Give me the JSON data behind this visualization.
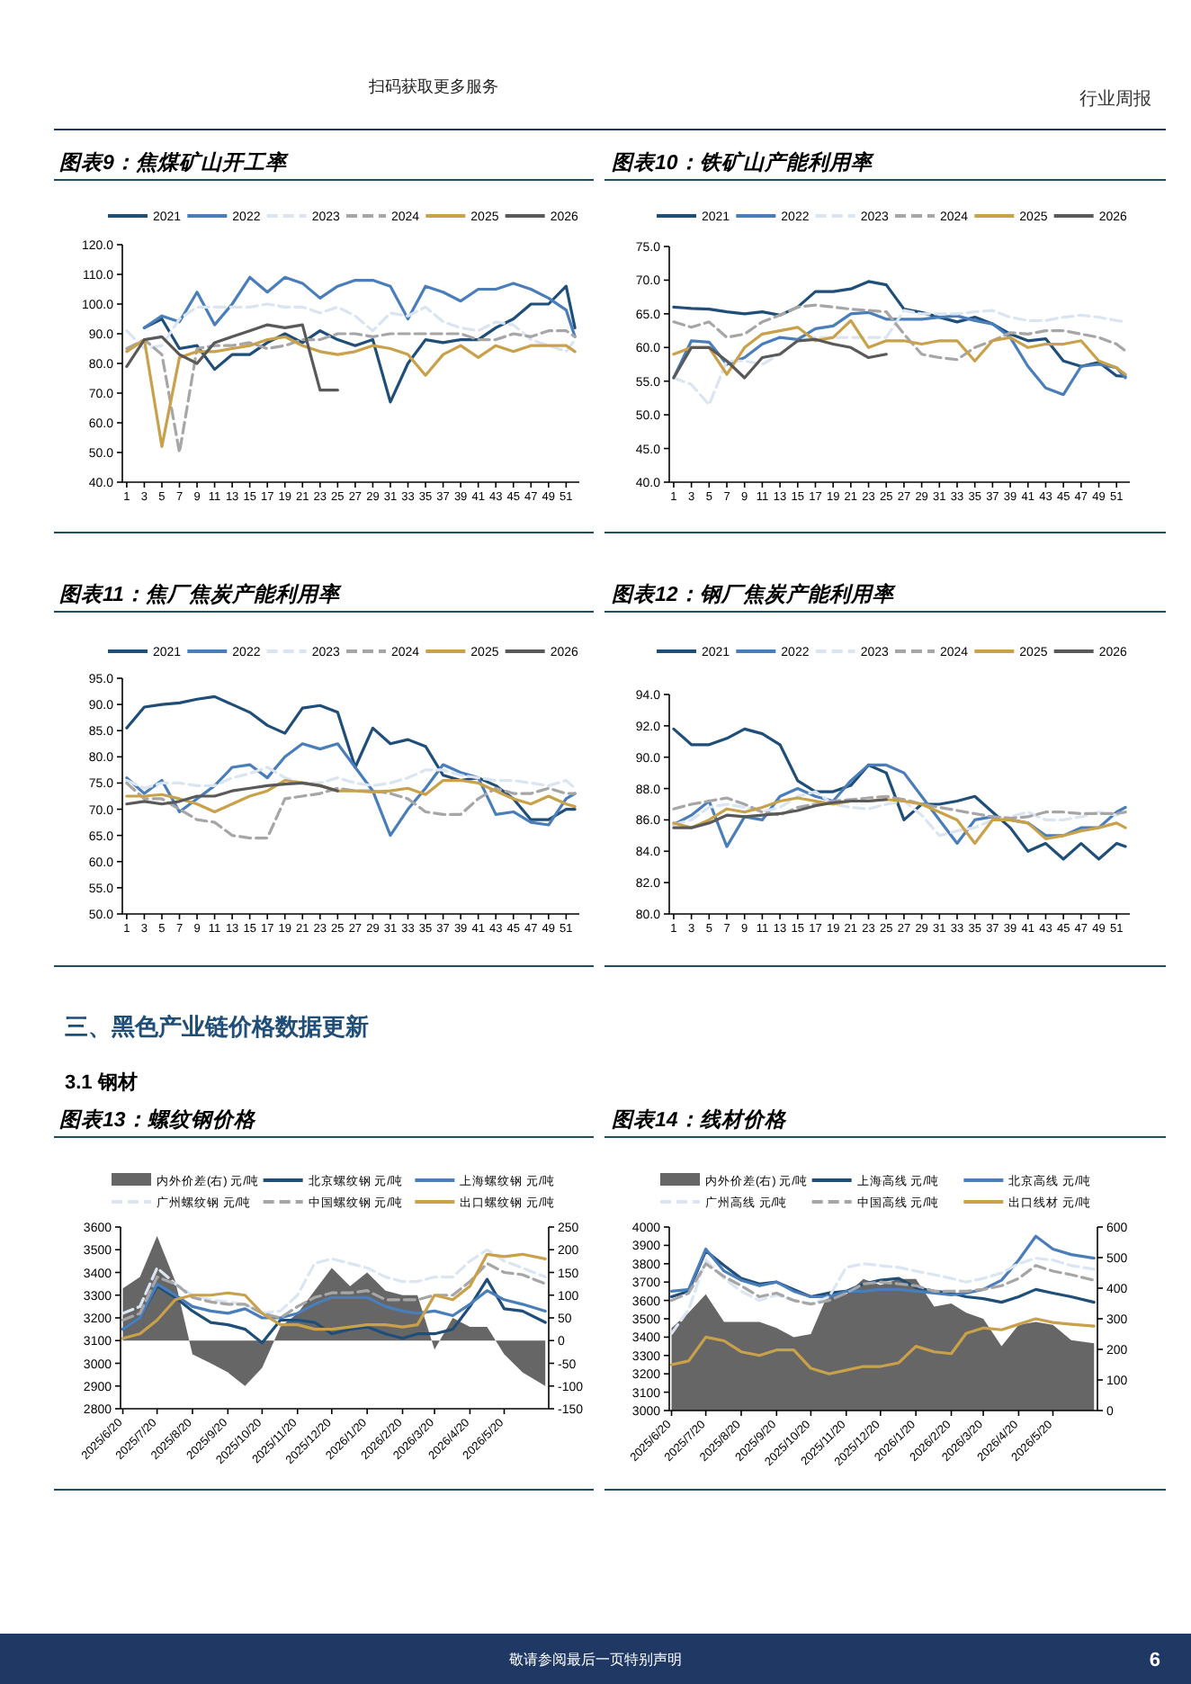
{
  "chart_data": [
    {
      "type": "line",
      "title": "图表9：焦煤矿山开工率",
      "legend": "top",
      "annotations": [
        "行业周报",
        "扫码获取更多服务",
        "敬请参阅最后一页特别声明",
        "6"
      ],
      "x": [
        1,
        3,
        5,
        7,
        9,
        11,
        13,
        15,
        17,
        19,
        21,
        23,
        25,
        27,
        29,
        31,
        33,
        35,
        37,
        39,
        41,
        43,
        45,
        47,
        49,
        51,
        52
      ],
      "xlim": [
        0.5,
        52.5
      ],
      "xticks": [
        1,
        3,
        5,
        7,
        9,
        11,
        13,
        15,
        17,
        19,
        21,
        23,
        25,
        27,
        29,
        31,
        33,
        35,
        37,
        39,
        41,
        43,
        45,
        47,
        49,
        51
      ],
      "ylim": [
        40,
        120
      ],
      "yticks": [
        {
          "value": 40,
          "label": "40.0"
        },
        {
          "value": 50,
          "label": "50.0"
        },
        {
          "value": 60,
          "label": "60.0"
        },
        {
          "value": 70,
          "label": "70.0"
        },
        {
          "value": 80,
          "label": "80.0"
        },
        {
          "value": 90,
          "label": "90.0"
        },
        {
          "value": 100,
          "label": "100.0"
        },
        {
          "value": 110,
          "label": "110.0"
        },
        {
          "value": 120,
          "label": "120.0"
        }
      ],
      "series": [
        {
          "name": "2021",
          "color": "#1f4e79",
          "line_style": "solid",
          "values": [
            null,
            92,
            95,
            85,
            86,
            78,
            83,
            83,
            87,
            90,
            87,
            91,
            88,
            86,
            88,
            67,
            80,
            88,
            87,
            88,
            88,
            92,
            95,
            100,
            100,
            106,
            92
          ]
        },
        {
          "name": "2022",
          "color": "#4a7ebb",
          "line_style": "solid",
          "values": [
            null,
            92,
            96,
            94,
            104,
            93,
            100,
            109,
            104,
            109,
            107,
            102,
            106,
            108,
            108,
            106,
            95,
            106,
            104,
            101,
            105,
            105,
            107,
            105,
            102,
            98,
            89
          ]
        },
        {
          "name": "2023",
          "color": "#dbe5f1",
          "line_style": "dashed",
          "values": [
            91,
            85,
            86,
            95,
            99,
            99,
            99,
            99,
            100,
            99,
            99,
            97,
            99,
            96,
            91,
            97,
            96,
            99,
            94,
            92,
            91,
            94,
            93,
            88,
            86,
            84,
            88
          ]
        },
        {
          "name": "2024",
          "color": "#a6a6a6",
          "line_style": "dashed",
          "values": [
            85,
            88,
            83,
            50,
            85,
            86,
            86,
            87,
            85,
            86,
            88,
            88,
            90,
            90,
            89,
            90,
            90,
            90,
            90,
            90,
            88,
            88,
            90,
            89,
            91,
            91,
            89
          ]
        },
        {
          "name": "2025",
          "color": "#c9a14a",
          "line_style": "solid",
          "values": [
            84,
            88,
            52,
            82,
            84,
            84,
            85,
            86,
            88,
            89,
            86,
            84,
            83,
            84,
            86,
            85,
            83,
            76,
            83,
            86,
            82,
            86,
            84,
            86,
            86,
            86,
            84
          ]
        },
        {
          "name": "2026",
          "color": "#595959",
          "line_style": "solid",
          "values": [
            79,
            88,
            89,
            83,
            80,
            87,
            89,
            91,
            93,
            92,
            93,
            71,
            71,
            null,
            null,
            null,
            null,
            null,
            null,
            null,
            null,
            null,
            null,
            null,
            null,
            null,
            null
          ]
        }
      ]
    },
    {
      "type": "line",
      "title": "图表10：铁矿山产能利用率",
      "legend": "top",
      "x": [
        1,
        3,
        5,
        7,
        9,
        11,
        13,
        15,
        17,
        19,
        21,
        23,
        25,
        27,
        29,
        31,
        33,
        35,
        37,
        39,
        41,
        43,
        45,
        47,
        49,
        51,
        52
      ],
      "xlim": [
        0.5,
        52.5
      ],
      "xticks": [
        1,
        3,
        5,
        7,
        9,
        11,
        13,
        15,
        17,
        19,
        21,
        23,
        25,
        27,
        29,
        31,
        33,
        35,
        37,
        39,
        41,
        43,
        45,
        47,
        49,
        51
      ],
      "ylim": [
        40,
        75
      ],
      "yticks": [
        {
          "value": 40,
          "label": "40.0"
        },
        {
          "value": 45,
          "label": "45.0"
        },
        {
          "value": 50,
          "label": "50.0"
        },
        {
          "value": 55,
          "label": "55.0"
        },
        {
          "value": 60,
          "label": "60.0"
        },
        {
          "value": 65,
          "label": "65.0"
        },
        {
          "value": 70,
          "label": "70.0"
        },
        {
          "value": 75,
          "label": "75.0"
        }
      ],
      "series": [
        {
          "name": "2021",
          "color": "#1f4e79",
          "line_style": "solid",
          "values": [
            66,
            65.8,
            65.7,
            65.3,
            65,
            65.3,
            64.8,
            66,
            68.3,
            68.3,
            68.7,
            69.8,
            69.3,
            65.7,
            65.2,
            64.5,
            63.8,
            64.5,
            63.5,
            62,
            61,
            61.3,
            58,
            57.2,
            57.8,
            55.8,
            55.7
          ]
        },
        {
          "name": "2022",
          "color": "#4a7ebb",
          "line_style": "solid",
          "values": [
            55.5,
            61,
            60.8,
            57.5,
            58.5,
            60.5,
            61.5,
            61.2,
            62.8,
            63.2,
            65,
            65.2,
            64.2,
            64.2,
            64.2,
            64.5,
            64.7,
            64,
            63.5,
            61.5,
            57.2,
            54,
            53,
            57.2,
            57.5,
            57,
            55.5
          ]
        },
        {
          "name": "2023",
          "color": "#dbe5f1",
          "line_style": "dashed",
          "values": [
            55.5,
            54.5,
            51.5,
            58,
            58,
            57.5,
            59,
            61,
            61.5,
            61.5,
            61.5,
            61.5,
            61.5,
            65.5,
            65,
            65,
            65,
            65.3,
            65.5,
            64.5,
            64,
            64,
            64.5,
            64.8,
            64.5,
            64,
            63.8
          ]
        },
        {
          "name": "2024",
          "color": "#a6a6a6",
          "line_style": "dashed",
          "values": [
            63.8,
            63,
            63.8,
            61.5,
            62,
            63.8,
            64.8,
            66,
            66.3,
            66,
            65.7,
            65.5,
            65.3,
            62,
            59,
            58.5,
            58.2,
            60,
            61,
            62.2,
            62,
            62.5,
            62.5,
            62,
            61.5,
            60.5,
            59.5
          ]
        },
        {
          "name": "2025",
          "color": "#c9a14a",
          "line_style": "solid",
          "values": [
            59,
            60,
            60,
            56,
            60,
            62,
            62.5,
            63,
            61,
            61.5,
            64,
            60,
            61,
            61,
            60.5,
            61,
            61,
            58,
            61,
            61.5,
            60,
            60.5,
            60.5,
            61,
            58,
            57,
            56
          ]
        },
        {
          "name": "2026",
          "color": "#595959",
          "line_style": "solid",
          "values": [
            55.5,
            60,
            60,
            58,
            55.5,
            58.5,
            59,
            61,
            61.2,
            60.5,
            60,
            58.5,
            59,
            null,
            null,
            null,
            null,
            null,
            null,
            null,
            null,
            null,
            null,
            null,
            null,
            null,
            null
          ]
        }
      ]
    },
    {
      "type": "line",
      "title": "图表11：焦厂焦炭产能利用率",
      "legend": "top",
      "x": [
        1,
        3,
        5,
        7,
        9,
        11,
        13,
        15,
        17,
        19,
        21,
        23,
        25,
        27,
        29,
        31,
        33,
        35,
        37,
        39,
        41,
        43,
        45,
        47,
        49,
        51,
        52
      ],
      "xlim": [
        0.5,
        52.5
      ],
      "xticks": [
        1,
        3,
        5,
        7,
        9,
        11,
        13,
        15,
        17,
        19,
        21,
        23,
        25,
        27,
        29,
        31,
        33,
        35,
        37,
        39,
        41,
        43,
        45,
        47,
        49,
        51
      ],
      "ylim": [
        50,
        95
      ],
      "yticks": [
        {
          "value": 50,
          "label": "50.0"
        },
        {
          "value": 55,
          "label": "55.0"
        },
        {
          "value": 60,
          "label": "60.0"
        },
        {
          "value": 65,
          "label": "65.0"
        },
        {
          "value": 70,
          "label": "70.0"
        },
        {
          "value": 75,
          "label": "75.0"
        },
        {
          "value": 80,
          "label": "80.0"
        },
        {
          "value": 85,
          "label": "85.0"
        },
        {
          "value": 90,
          "label": "90.0"
        },
        {
          "value": 95,
          "label": "95.0"
        }
      ],
      "series": [
        {
          "name": "2021",
          "color": "#1f4e79",
          "line_style": "solid",
          "values": [
            85.5,
            89.5,
            90,
            90.3,
            91,
            91.5,
            90,
            88.5,
            86,
            84.5,
            89.3,
            89.8,
            88.5,
            78,
            85.5,
            82.5,
            83.3,
            82,
            76.5,
            75.5,
            76,
            74.5,
            72,
            68,
            68,
            70,
            70
          ]
        },
        {
          "name": "2022",
          "color": "#4a7ebb",
          "line_style": "solid",
          "values": [
            76,
            73,
            75.5,
            69.5,
            72,
            74.5,
            78,
            78.5,
            76,
            80,
            82.5,
            81.5,
            82.5,
            78,
            73.5,
            65,
            70,
            74,
            78.5,
            77,
            76,
            69,
            69.5,
            67.5,
            67,
            72,
            73
          ]
        },
        {
          "name": "2023",
          "color": "#dbe5f1",
          "line_style": "dashed",
          "values": [
            75.5,
            74,
            75,
            75,
            74.5,
            74.5,
            76,
            76.8,
            78,
            76,
            75,
            75,
            76,
            75,
            74.5,
            75,
            76,
            77.5,
            77.5,
            76.5,
            76,
            75.5,
            75.5,
            75,
            74.5,
            75.5,
            74
          ]
        },
        {
          "name": "2024",
          "color": "#a6a6a6",
          "line_style": "dashed",
          "values": [
            75,
            72,
            72,
            70,
            68,
            67.5,
            65,
            64.5,
            64.5,
            72,
            72.5,
            73,
            74,
            73.5,
            73.5,
            73,
            72,
            69.5,
            69,
            69,
            72,
            74,
            73,
            73,
            74,
            73,
            73
          ]
        },
        {
          "name": "2025",
          "color": "#c9a14a",
          "line_style": "solid",
          "values": [
            72.5,
            72.5,
            72.8,
            72,
            71,
            69.5,
            71,
            72.5,
            73.5,
            75.5,
            75,
            74.5,
            73.5,
            73.5,
            73.3,
            73.5,
            74,
            72.8,
            75.5,
            75.5,
            75,
            73.5,
            72,
            71,
            72.5,
            71,
            70.5
          ]
        },
        {
          "name": "2026",
          "color": "#595959",
          "line_style": "solid",
          "values": [
            71,
            71.5,
            71,
            71.5,
            72.5,
            72.5,
            73.5,
            74,
            74.5,
            74.8,
            75,
            74.5,
            73.5,
            null,
            null,
            null,
            null,
            null,
            null,
            null,
            null,
            null,
            null,
            null,
            null,
            null,
            null
          ]
        }
      ]
    },
    {
      "type": "line",
      "title": "图表12：钢厂焦炭产能利用率",
      "legend": "top",
      "x": [
        1,
        3,
        5,
        7,
        9,
        11,
        13,
        15,
        17,
        19,
        21,
        23,
        25,
        27,
        29,
        31,
        33,
        35,
        37,
        39,
        41,
        43,
        45,
        47,
        49,
        51,
        52
      ],
      "xlim": [
        0.5,
        52.5
      ],
      "xticks": [
        1,
        3,
        5,
        7,
        9,
        11,
        13,
        15,
        17,
        19,
        21,
        23,
        25,
        27,
        29,
        31,
        33,
        35,
        37,
        39,
        41,
        43,
        45,
        47,
        49,
        51
      ],
      "ylim": [
        80,
        94
      ],
      "yticks": [
        {
          "value": 80,
          "label": "80.0"
        },
        {
          "value": 82,
          "label": "82.0"
        },
        {
          "value": 84,
          "label": "84.0"
        },
        {
          "value": 86,
          "label": "86.0"
        },
        {
          "value": 88,
          "label": "88.0"
        },
        {
          "value": 90,
          "label": "90.0"
        },
        {
          "value": 92,
          "label": "92.0"
        },
        {
          "value": 94,
          "label": "94.0"
        }
      ],
      "series": [
        {
          "name": "2021",
          "color": "#1f4e79",
          "line_style": "solid",
          "values": [
            91.8,
            90.8,
            90.8,
            91.2,
            91.8,
            91.5,
            90.8,
            88.5,
            87.8,
            87.8,
            88.2,
            89.5,
            89,
            86,
            87,
            87,
            87.2,
            87.5,
            86.5,
            85.5,
            84,
            84.5,
            83.5,
            84.5,
            83.5,
            84.5,
            84.3
          ]
        },
        {
          "name": "2022",
          "color": "#4a7ebb",
          "line_style": "solid",
          "values": [
            85.7,
            86.3,
            87.2,
            84.3,
            86.2,
            86,
            87.5,
            88,
            87.5,
            87.2,
            88.5,
            89.5,
            89.5,
            89,
            87.5,
            86,
            84.5,
            86,
            86.2,
            86,
            85.8,
            85,
            85,
            85.5,
            85.5,
            86.5,
            86.8
          ]
        },
        {
          "name": "2023",
          "color": "#dbe5f1",
          "line_style": "dashed",
          "values": [
            85.7,
            86,
            86.8,
            87,
            86.8,
            86.5,
            86.8,
            87.5,
            87.8,
            87,
            86.8,
            86.7,
            87,
            87.2,
            86.3,
            85,
            85.3,
            85.5,
            86,
            86.2,
            86.5,
            86,
            86,
            86.2,
            86.5,
            86.3,
            86.5
          ]
        },
        {
          "name": "2024",
          "color": "#a6a6a6",
          "line_style": "dashed",
          "values": [
            86.7,
            87,
            87.2,
            87.4,
            87,
            86.5,
            86.3,
            86.8,
            87,
            87.2,
            87.3,
            87.4,
            87.5,
            87.3,
            87,
            86.8,
            86.6,
            86.4,
            86.2,
            86.1,
            86.2,
            86.5,
            86.5,
            86.4,
            86.4,
            86.4,
            86.5
          ]
        },
        {
          "name": "2025",
          "color": "#c9a14a",
          "line_style": "solid",
          "values": [
            85.8,
            85.5,
            86,
            86.7,
            86.5,
            86.8,
            87.2,
            87.4,
            87.2,
            87,
            87.2,
            87.2,
            87.3,
            87.2,
            87,
            86.5,
            86,
            84.5,
            86,
            86,
            85.8,
            84.8,
            85,
            85.3,
            85.5,
            85.8,
            85.5
          ]
        },
        {
          "name": "2026",
          "color": "#595959",
          "line_style": "solid",
          "values": [
            85.5,
            85.5,
            85.8,
            86.3,
            86.2,
            86.3,
            86.4,
            86.6,
            86.9,
            87.1,
            87.2,
            87.2,
            87.3,
            null,
            null,
            null,
            null,
            null,
            null,
            null,
            null,
            null,
            null,
            null,
            null,
            null,
            null
          ]
        }
      ]
    },
    {
      "type": "line",
      "title": "图表13：螺纹钢价格",
      "legend": "top",
      "annotations": [
        "三、黑色产业链价格数据更新",
        "3.1 钢材"
      ],
      "x": [
        "2025-06-20",
        "2025-07-05",
        "2025-07-20",
        "2025-08-05",
        "2025-08-20",
        "2025-09-05",
        "2025-09-20",
        "2025-10-05",
        "2025-10-20",
        "2025-11-05",
        "2025-11-20",
        "2025-12-05",
        "2025-12-20",
        "2026-01-05",
        "2026-01-20",
        "2026-02-05",
        "2026-02-20",
        "2026-03-05",
        "2026-03-20",
        "2026-04-05",
        "2026-04-20",
        "2026-05-05",
        "2026-05-20",
        "2026-06-05",
        "2026-06-25"
      ],
      "xlim": [
        "2025-06-18",
        "2026-06-28"
      ],
      "xticks": [
        {
          "value": "2025-06-20",
          "label": "2025/6/20"
        },
        {
          "value": "2025-07-20",
          "label": "2025/7/20"
        },
        {
          "value": "2025-08-20",
          "label": "2025/8/20"
        },
        {
          "value": "2025-09-20",
          "label": "2025/9/20"
        },
        {
          "value": "2025-10-20",
          "label": "2025/10/20"
        },
        {
          "value": "2025-11-20",
          "label": "2025/11/20"
        },
        {
          "value": "2025-12-20",
          "label": "2025/12/20"
        },
        {
          "value": "2026-01-20",
          "label": "2026/1/20"
        },
        {
          "value": "2026-02-20",
          "label": "2026/2/20"
        },
        {
          "value": "2026-03-20",
          "label": "2026/3/20"
        },
        {
          "value": "2026-04-20",
          "label": "2026/4/20"
        },
        {
          "value": "2026-05-20",
          "label": "2026/5/20"
        }
      ],
      "ylim": [
        2800,
        3600
      ],
      "yticks": [
        2800,
        2900,
        3000,
        3100,
        3200,
        3300,
        3400,
        3500,
        3600
      ],
      "y2lim": [
        -150,
        250
      ],
      "y2ticks": [
        -150,
        -100,
        -50,
        0,
        50,
        100,
        150,
        200,
        250
      ],
      "series": [
        {
          "name": "内外价差(右) 元/吨",
          "type": "area",
          "axis": "y2",
          "color": "#666666",
          "values": [
            115,
            140,
            230,
            130,
            -30,
            -50,
            -70,
            -100,
            -60,
            30,
            60,
            110,
            160,
            120,
            150,
            110,
            100,
            100,
            -20,
            50,
            30,
            30,
            -30,
            -70,
            -100
          ]
        },
        {
          "name": "北京螺纹钢 元/吨",
          "color": "#1f4e79",
          "line_style": "solid",
          "values": [
            3150,
            3200,
            3340,
            3290,
            3230,
            3180,
            3170,
            3150,
            3090,
            3190,
            3190,
            3180,
            3130,
            3150,
            3160,
            3130,
            3110,
            3130,
            3130,
            3150,
            3250,
            3370,
            3240,
            3230,
            3180
          ]
        },
        {
          "name": "上海螺纹钢 元/吨",
          "color": "#4a7ebb",
          "line_style": "solid",
          "values": [
            3150,
            3200,
            3350,
            3300,
            3250,
            3230,
            3220,
            3240,
            3200,
            3200,
            3220,
            3260,
            3290,
            3290,
            3290,
            3250,
            3230,
            3220,
            3230,
            3210,
            3260,
            3320,
            3280,
            3260,
            3230
          ]
        },
        {
          "name": "广州螺纹钢 元/吨",
          "color": "#dce6f2",
          "line_style": "dashed",
          "values": [
            3220,
            3250,
            3420,
            3350,
            3300,
            3280,
            3270,
            3260,
            3220,
            3230,
            3300,
            3440,
            3460,
            3440,
            3420,
            3380,
            3360,
            3360,
            3380,
            3380,
            3450,
            3500,
            3450,
            3420,
            3380
          ]
        },
        {
          "name": "中国螺纹钢 元/吨",
          "color": "#a6a6a6",
          "line_style": "dashed",
          "values": [
            3190,
            3220,
            3380,
            3350,
            3290,
            3270,
            3260,
            3260,
            3220,
            3200,
            3250,
            3290,
            3310,
            3310,
            3320,
            3280,
            3280,
            3280,
            3300,
            3300,
            3360,
            3440,
            3400,
            3390,
            3350
          ]
        },
        {
          "name": "出口螺纹钢 元/吨",
          "color": "#c9a14a",
          "line_style": "solid",
          "values": [
            3110,
            3130,
            3190,
            3280,
            3300,
            3300,
            3310,
            3300,
            3220,
            3170,
            3170,
            3150,
            3150,
            3160,
            3170,
            3170,
            3160,
            3170,
            3300,
            3280,
            3340,
            3480,
            3470,
            3480,
            3460
          ]
        }
      ]
    },
    {
      "type": "line",
      "title": "图表14：线材价格",
      "legend": "top",
      "x": [
        "2025-06-20",
        "2025-07-05",
        "2025-07-20",
        "2025-08-05",
        "2025-08-20",
        "2025-09-05",
        "2025-09-20",
        "2025-10-05",
        "2025-10-20",
        "2025-11-05",
        "2025-11-20",
        "2025-12-05",
        "2025-12-20",
        "2026-01-05",
        "2026-01-20",
        "2026-02-05",
        "2026-02-20",
        "2026-03-05",
        "2026-03-20",
        "2026-04-05",
        "2026-04-20",
        "2026-05-05",
        "2026-05-20",
        "2026-06-05",
        "2026-06-25"
      ],
      "xlim": [
        "2025-06-18",
        "2026-06-28"
      ],
      "xticks": [
        {
          "value": "2025-06-20",
          "label": "2025/6/20"
        },
        {
          "value": "2025-07-20",
          "label": "2025/7/20"
        },
        {
          "value": "2025-08-20",
          "label": "2025/8/20"
        },
        {
          "value": "2025-09-20",
          "label": "2025/9/20"
        },
        {
          "value": "2025-10-20",
          "label": "2025/10/20"
        },
        {
          "value": "2025-11-20",
          "label": "2025/11/20"
        },
        {
          "value": "2025-12-20",
          "label": "2025/12/20"
        },
        {
          "value": "2026-01-20",
          "label": "2026/1/20"
        },
        {
          "value": "2026-02-20",
          "label": "2026/2/20"
        },
        {
          "value": "2026-03-20",
          "label": "2026/3/20"
        },
        {
          "value": "2026-04-20",
          "label": "2026/4/20"
        },
        {
          "value": "2026-05-20",
          "label": "2026/5/20"
        }
      ],
      "ylim": [
        3000,
        4000
      ],
      "yticks": [
        3000,
        3100,
        3200,
        3300,
        3400,
        3500,
        3600,
        3700,
        3800,
        3900,
        4000
      ],
      "y2lim": [
        0,
        600
      ],
      "y2ticks": [
        0,
        100,
        200,
        300,
        400,
        500,
        600
      ],
      "series": [
        {
          "name": "内外价差(右) 元/吨",
          "type": "area",
          "axis": "y2",
          "color": "#666666",
          "values": [
            270,
            320,
            380,
            290,
            290,
            290,
            270,
            240,
            250,
            390,
            380,
            430,
            410,
            430,
            430,
            340,
            350,
            320,
            300,
            210,
            280,
            290,
            280,
            230,
            220
          ]
        },
        {
          "name": "上海高线 元/吨",
          "color": "#1f4e79",
          "line_style": "solid",
          "values": [
            3620,
            3650,
            3870,
            3790,
            3720,
            3690,
            3700,
            3660,
            3620,
            3640,
            3650,
            3690,
            3710,
            3720,
            3670,
            3650,
            3640,
            3620,
            3610,
            3590,
            3620,
            3660,
            3640,
            3620,
            3590
          ]
        },
        {
          "name": "北京高线 元/吨",
          "color": "#4a7ebb",
          "line_style": "solid",
          "values": [
            3650,
            3660,
            3880,
            3760,
            3710,
            3680,
            3700,
            3650,
            3620,
            3620,
            3650,
            3650,
            3660,
            3660,
            3650,
            3640,
            3630,
            3640,
            3660,
            3710,
            3820,
            3950,
            3880,
            3850,
            3830
          ]
        },
        {
          "name": "广州高线 元/吨",
          "color": "#dce6f2",
          "line_style": "dashed",
          "values": [
            3420,
            3550,
            3820,
            3720,
            3650,
            3600,
            3630,
            3600,
            3580,
            3620,
            3780,
            3800,
            3790,
            3780,
            3760,
            3740,
            3720,
            3700,
            3720,
            3750,
            3800,
            3830,
            3820,
            3790,
            3770
          ]
        },
        {
          "name": "中国高线 元/吨",
          "color": "#a6a6a6",
          "line_style": "dashed",
          "values": [
            3600,
            3640,
            3800,
            3730,
            3680,
            3620,
            3640,
            3600,
            3580,
            3600,
            3640,
            3690,
            3700,
            3690,
            3680,
            3650,
            3650,
            3650,
            3660,
            3680,
            3720,
            3790,
            3760,
            3740,
            3710
          ]
        },
        {
          "name": "出口线材 元/吨",
          "color": "#c9a14a",
          "line_style": "solid",
          "values": [
            3250,
            3270,
            3400,
            3380,
            3320,
            3300,
            3330,
            3330,
            3230,
            3200,
            3220,
            3240,
            3240,
            3260,
            3350,
            3320,
            3310,
            3420,
            3450,
            3440,
            3470,
            3500,
            3480,
            3470,
            3460
          ]
        }
      ]
    }
  ]
}
